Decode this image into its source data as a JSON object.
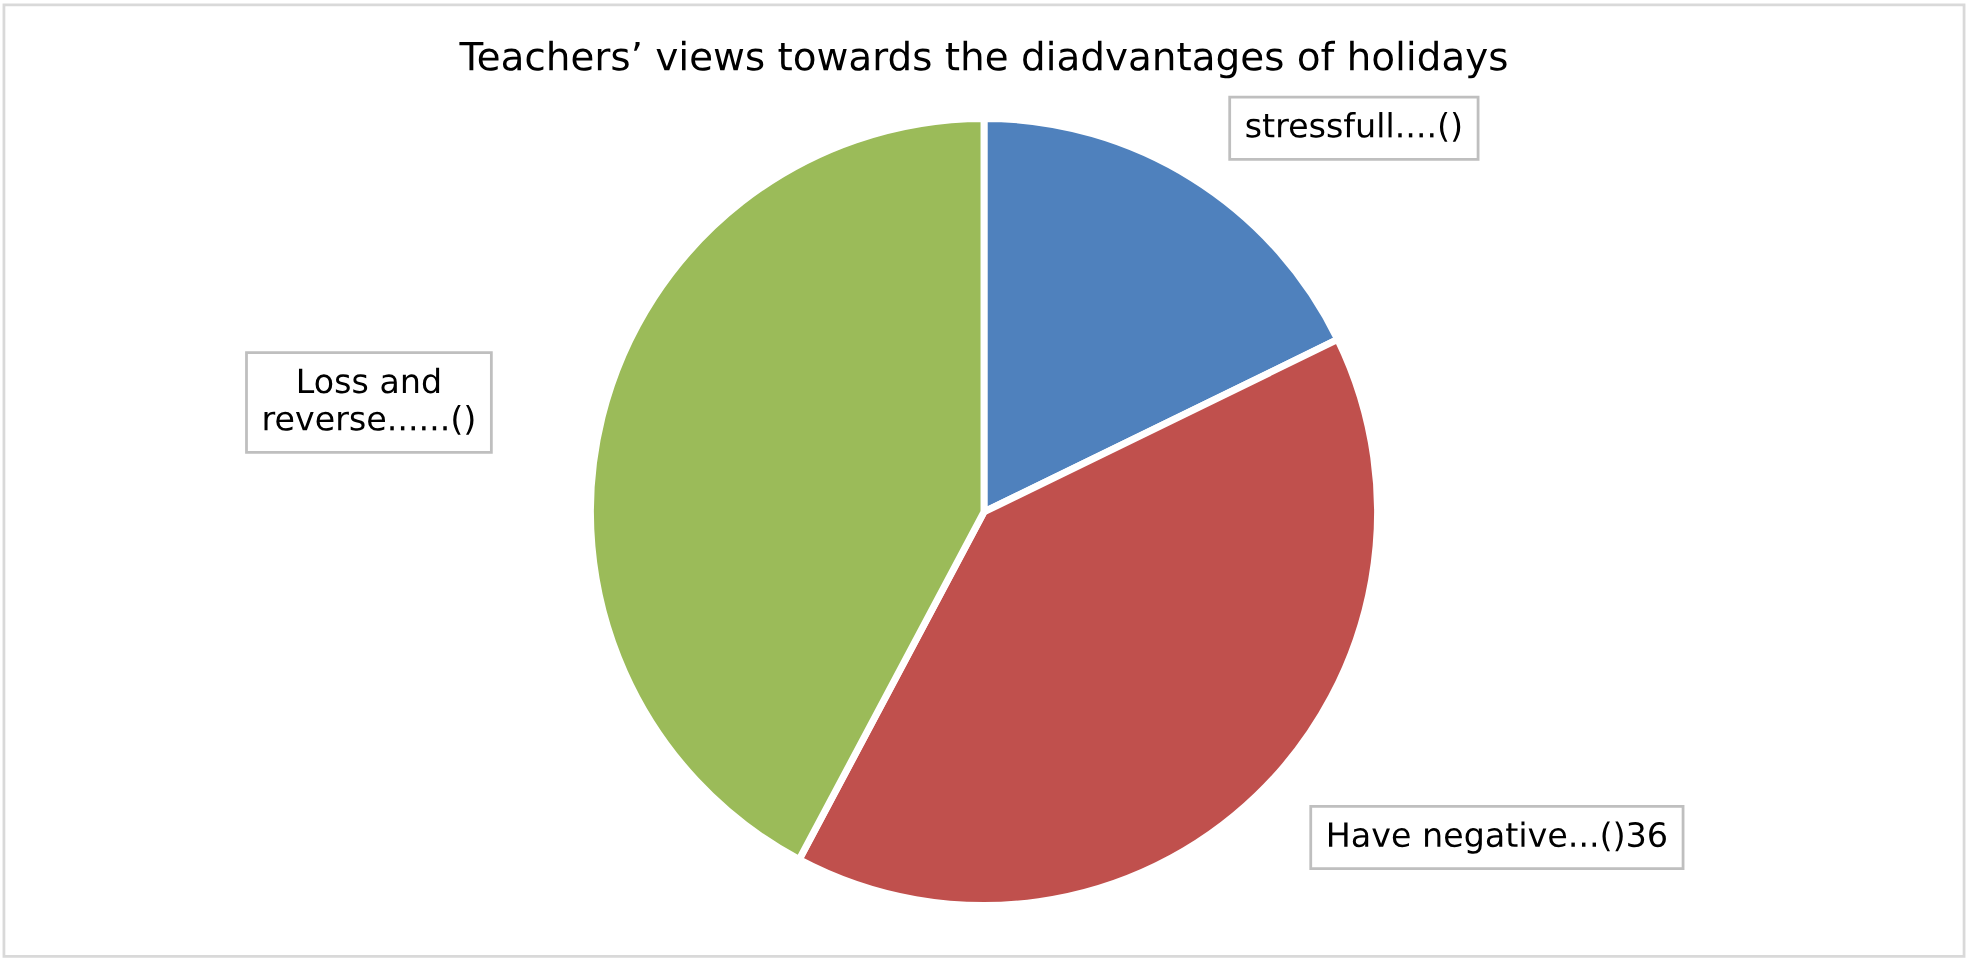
{
  "chart_data": {
    "type": "pie",
    "title": "Teachers’ views towards the diadvantages of holidays",
    "categories": [
      "stressfull....()",
      "Have negative...()",
      "Loss and reverse......()"
    ],
    "values": [
      16,
      36,
      38
    ],
    "value_labels": [
      null,
      "36",
      null
    ],
    "colors": [
      "#4f81bd",
      "#c0504d",
      "#9bbb59"
    ],
    "legend": false
  }
}
